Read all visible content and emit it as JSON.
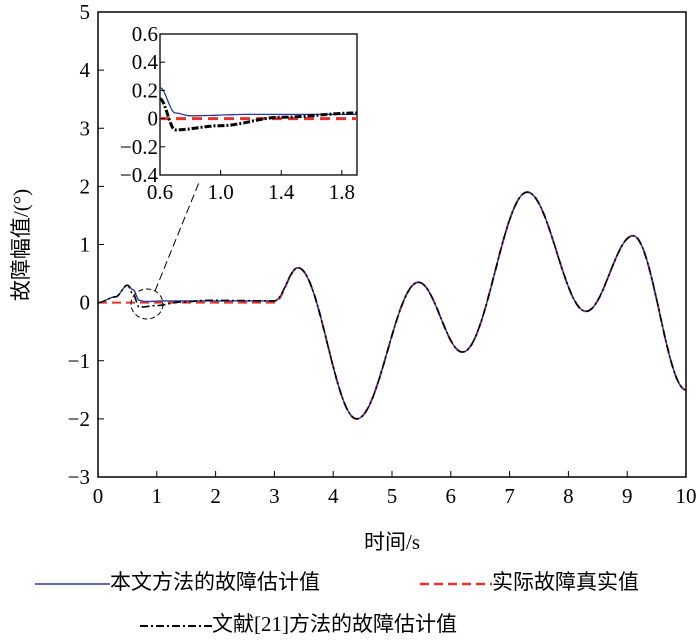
{
  "chart_data": {
    "type": "line",
    "xlabel": "时间/s",
    "ylabel": "故障幅值/(°)",
    "xlim": [
      0,
      10
    ],
    "ylim": [
      -3,
      5
    ],
    "xticks": [
      "0",
      "1",
      "2",
      "3",
      "4",
      "5",
      "6",
      "7",
      "8",
      "9",
      "10"
    ],
    "yticks": [
      "−3",
      "−2",
      "−1",
      "0",
      "1",
      "2",
      "3",
      "4",
      "5"
    ],
    "keypoints_after_fault": [
      [
        3,
        0.03
      ],
      [
        3.4,
        0.6
      ],
      [
        4.4,
        -2
      ],
      [
        5.45,
        0.35
      ],
      [
        6.2,
        -0.85
      ],
      [
        7.3,
        1.9
      ],
      [
        8.3,
        -0.15
      ],
      [
        9.1,
        1.15
      ],
      [
        10,
        -1.5
      ]
    ],
    "series": [
      {
        "name": "本文方法的故障估计值",
        "color": "#2b3a9a",
        "style": "solid",
        "early": [
          [
            0,
            0
          ],
          [
            0.3,
            0.1
          ],
          [
            0.5,
            0.3
          ],
          [
            0.6,
            0.22
          ],
          [
            0.7,
            0.04
          ],
          [
            0.8,
            0.02
          ],
          [
            1.2,
            0.03
          ],
          [
            3,
            0.03
          ]
        ]
      },
      {
        "name": "实际故障真实值",
        "color": "#e8302c",
        "style": "dashed",
        "early": [
          [
            0,
            0
          ],
          [
            3,
            0
          ]
        ]
      },
      {
        "name": "文献[21]方法的故障估计值",
        "color": "#000000",
        "style": "dashdot",
        "early": [
          [
            0,
            0
          ],
          [
            0.3,
            0.1
          ],
          [
            0.5,
            0.3
          ],
          [
            0.6,
            0.14
          ],
          [
            0.7,
            -0.08
          ],
          [
            1.0,
            -0.05
          ],
          [
            1.4,
            0.01
          ],
          [
            1.9,
            0.04
          ],
          [
            3,
            0.03
          ]
        ]
      }
    ],
    "inset": {
      "xlim": [
        0.6,
        1.9
      ],
      "ylim": [
        -0.4,
        0.6
      ],
      "xticks": [
        "0.6",
        "1.0",
        "1.4",
        "1.8"
      ],
      "yticks": [
        "−0.4",
        "−0.2",
        "0",
        "0.2",
        "0.4",
        "0.6"
      ]
    },
    "legend": "bottom"
  }
}
